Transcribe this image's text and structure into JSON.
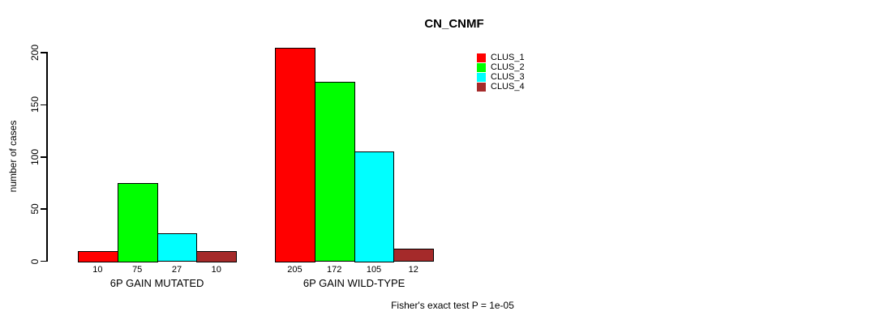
{
  "chart_data": {
    "type": "bar",
    "title": "CN_CNMF",
    "ylabel": "number of cases",
    "xlabel": "",
    "ylim": [
      0,
      200
    ],
    "yticks": [
      0,
      50,
      100,
      150,
      200
    ],
    "grid": false,
    "legend_position": "top-right",
    "categories": [
      "6P GAIN MUTATED",
      "6P GAIN WILD-TYPE"
    ],
    "series": [
      {
        "name": "CLUS_1",
        "color": "#FF0000",
        "values": [
          10,
          205
        ]
      },
      {
        "name": "CLUS_2",
        "color": "#00FF00",
        "values": [
          75,
          172
        ]
      },
      {
        "name": "CLUS_3",
        "color": "#00FFFF",
        "values": [
          27,
          105
        ]
      },
      {
        "name": "CLUS_4",
        "color": "#A52A2A",
        "values": [
          10,
          12
        ]
      }
    ],
    "bar_value_labels": [
      [
        "10",
        "75",
        "27",
        "10"
      ],
      [
        "205",
        "172",
        "105",
        "12"
      ]
    ],
    "annotation": "Fisher's exact test P = 1e-05"
  }
}
